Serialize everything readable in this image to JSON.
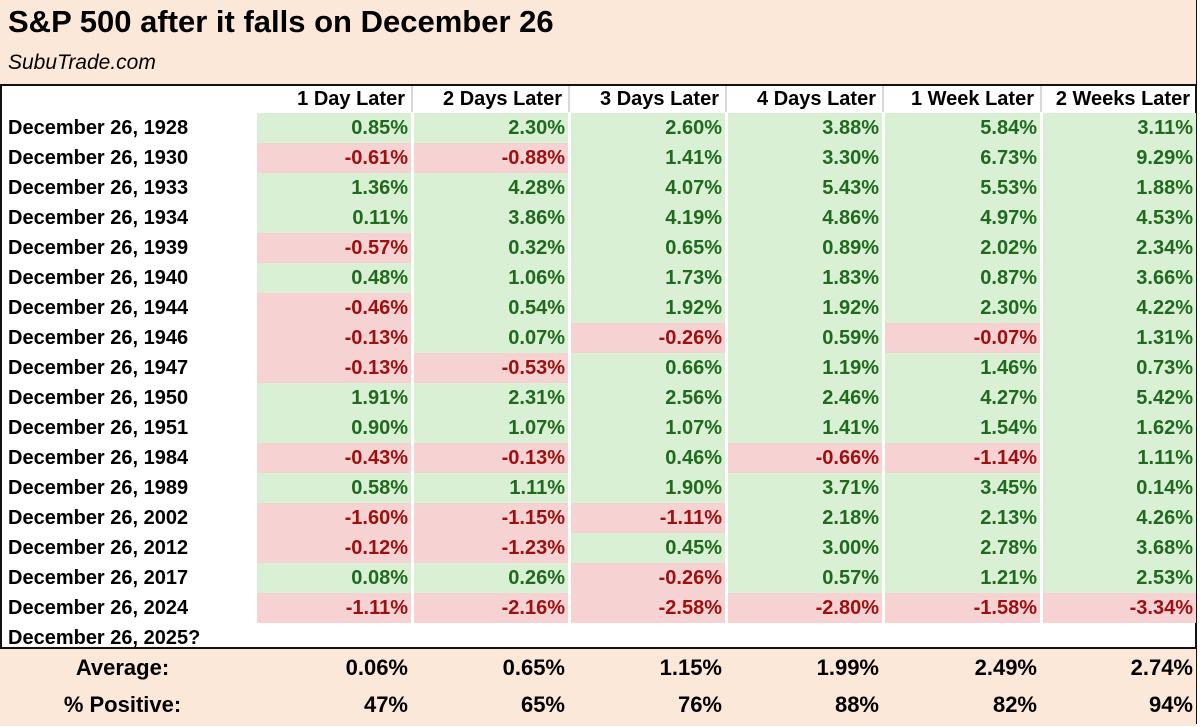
{
  "header": {
    "title": "S&P 500 after it falls on December 26",
    "source": "SubuTrade.com"
  },
  "chart_data": {
    "type": "table",
    "title": "S&P 500 after it falls on December 26",
    "columns": [
      "1 Day Later",
      "2 Days Later",
      "3 Days Later",
      "4 Days Later",
      "1 Week Later",
      "2 Weeks Later"
    ],
    "rows": [
      {
        "label": "December 26, 1928",
        "values": [
          "0.85%",
          "2.30%",
          "2.60%",
          "3.88%",
          "5.84%",
          "3.11%"
        ]
      },
      {
        "label": "December 26, 1930",
        "values": [
          "-0.61%",
          "-0.88%",
          "1.41%",
          "3.30%",
          "6.73%",
          "9.29%"
        ]
      },
      {
        "label": "December 26, 1933",
        "values": [
          "1.36%",
          "4.28%",
          "4.07%",
          "5.43%",
          "5.53%",
          "1.88%"
        ]
      },
      {
        "label": "December 26, 1934",
        "values": [
          "0.11%",
          "3.86%",
          "4.19%",
          "4.86%",
          "4.97%",
          "4.53%"
        ]
      },
      {
        "label": "December 26, 1939",
        "values": [
          "-0.57%",
          "0.32%",
          "0.65%",
          "0.89%",
          "2.02%",
          "2.34%"
        ]
      },
      {
        "label": "December 26, 1940",
        "values": [
          "0.48%",
          "1.06%",
          "1.73%",
          "1.83%",
          "0.87%",
          "3.66%"
        ]
      },
      {
        "label": "December 26, 1944",
        "values": [
          "-0.46%",
          "0.54%",
          "1.92%",
          "1.92%",
          "2.30%",
          "4.22%"
        ]
      },
      {
        "label": "December 26, 1946",
        "values": [
          "-0.13%",
          "0.07%",
          "-0.26%",
          "0.59%",
          "-0.07%",
          "1.31%"
        ]
      },
      {
        "label": "December 26, 1947",
        "values": [
          "-0.13%",
          "-0.53%",
          "0.66%",
          "1.19%",
          "1.46%",
          "0.73%"
        ]
      },
      {
        "label": "December 26, 1950",
        "values": [
          "1.91%",
          "2.31%",
          "2.56%",
          "2.46%",
          "4.27%",
          "5.42%"
        ]
      },
      {
        "label": "December 26, 1951",
        "values": [
          "0.90%",
          "1.07%",
          "1.07%",
          "1.41%",
          "1.54%",
          "1.62%"
        ]
      },
      {
        "label": "December 26, 1984",
        "values": [
          "-0.43%",
          "-0.13%",
          "0.46%",
          "-0.66%",
          "-1.14%",
          "1.11%"
        ]
      },
      {
        "label": "December 26, 1989",
        "values": [
          "0.58%",
          "1.11%",
          "1.90%",
          "3.71%",
          "3.45%",
          "0.14%"
        ]
      },
      {
        "label": "December 26, 2002",
        "values": [
          "-1.60%",
          "-1.15%",
          "-1.11%",
          "2.18%",
          "2.13%",
          "4.26%"
        ]
      },
      {
        "label": "December 26, 2012",
        "values": [
          "-0.12%",
          "-1.23%",
          "0.45%",
          "3.00%",
          "2.78%",
          "3.68%"
        ]
      },
      {
        "label": "December 26, 2017",
        "values": [
          "0.08%",
          "0.26%",
          "-0.26%",
          "0.57%",
          "1.21%",
          "2.53%"
        ]
      },
      {
        "label": "December 26, 2024",
        "values": [
          "-1.11%",
          "-2.16%",
          "-2.58%",
          "-2.80%",
          "-1.58%",
          "-3.34%"
        ]
      },
      {
        "label": "December 26, 2025?",
        "values": [
          "",
          "",
          "",
          "",
          "",
          ""
        ]
      }
    ],
    "summary": [
      {
        "label": "Average:",
        "values": [
          "0.06%",
          "0.65%",
          "1.15%",
          "1.99%",
          "2.49%",
          "2.74%"
        ]
      },
      {
        "label": "% Positive:",
        "values": [
          "47%",
          "65%",
          "76%",
          "88%",
          "82%",
          "94%"
        ]
      }
    ],
    "colors": {
      "positive_bg": "#d9f0d4",
      "positive_text": "#1f6a1f",
      "negative_bg": "#f6d2d3",
      "negative_text": "#9c1010",
      "header_bg": "#fbe8d9"
    }
  }
}
